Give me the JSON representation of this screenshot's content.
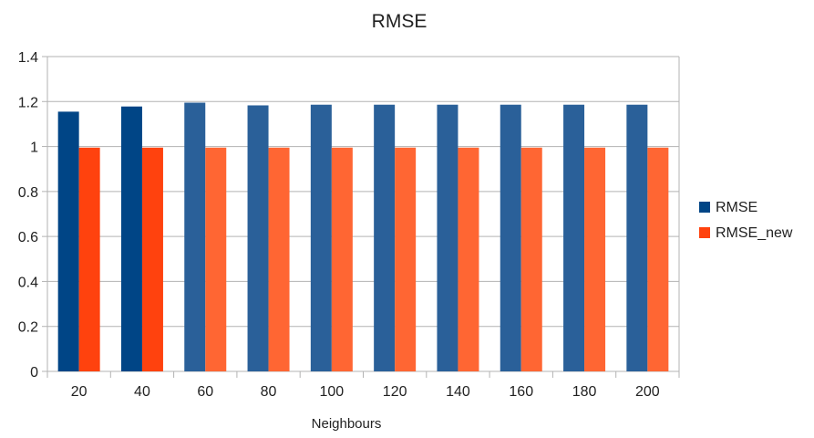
{
  "chart_data": {
    "type": "bar",
    "title": "RMSE",
    "xlabel": "Neighbours",
    "ylabel": "",
    "categories": [
      "20",
      "40",
      "60",
      "80",
      "100",
      "120",
      "140",
      "160",
      "180",
      "200"
    ],
    "series": [
      {
        "name": "RMSE",
        "values": [
          1.155,
          1.178,
          1.195,
          1.183,
          1.186,
          1.186,
          1.186,
          1.186,
          1.186,
          1.186
        ]
      },
      {
        "name": "RMSE_new",
        "values": [
          0.995,
          0.995,
          0.995,
          0.995,
          0.995,
          0.995,
          0.995,
          0.995,
          0.995,
          0.995
        ]
      }
    ],
    "ylim": [
      0,
      1.4
    ],
    "yticks": [
      "0",
      "0.2",
      "0.4",
      "0.6",
      "0.8",
      "1",
      "1.2",
      "1.4"
    ],
    "ytick_values": [
      0,
      0.2,
      0.4,
      0.6,
      0.8,
      1,
      1.2,
      1.4
    ],
    "grid": true,
    "legend": "right",
    "colors": {
      "RMSE_dark": "#004586",
      "RMSE_light": "#2a6099",
      "RMSE_new_dark": "#ff420e",
      "RMSE_new_light": "#ff6633",
      "legend_RMSE": "#004586",
      "legend_RMSE_new": "#ff420e",
      "grid": "#b3b3b3",
      "axis": "#b3b3b3"
    }
  }
}
